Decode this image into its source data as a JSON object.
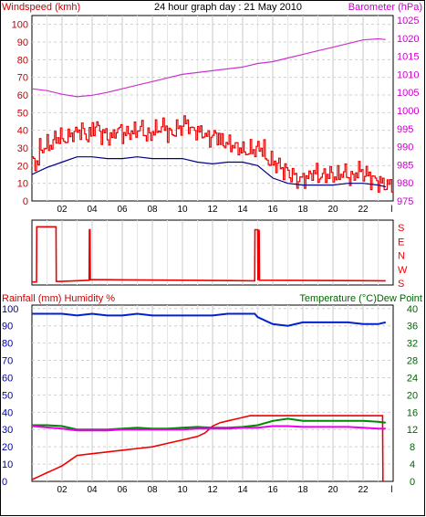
{
  "title": "24 hour graph day : 21 May 2010",
  "colors": {
    "background": "#ffffff",
    "grid": "#c8c8c8",
    "axis_left_top": "#cc0000",
    "axis_right_top": "#cc00cc",
    "windspeed": "#ee0000",
    "windspeed_avg": "#000088",
    "barometer": "#cc33cc",
    "direction": "#ee0000",
    "rainfall": "#ee0000",
    "humidity": "#0022cc",
    "temperature": "#008800",
    "dewpoint": "#ee00ee",
    "axis_temperature": "#006600",
    "axis_humidity": "#0000aa"
  },
  "chart_data": [
    {
      "id": "wind-barometer",
      "type": "line",
      "left_axis_label": "Windspeed (kmh)",
      "right_axis_label": "Barometer (hPa)",
      "x_ticks": [
        "02",
        "04",
        "06",
        "08",
        "10",
        "12",
        "14",
        "16",
        "18",
        "20",
        "22",
        "l"
      ],
      "x_range": [
        0,
        24
      ],
      "left_ticks": [
        "0",
        "10",
        "20",
        "30",
        "40",
        "50",
        "60",
        "70",
        "80",
        "90",
        "100"
      ],
      "left_range": [
        0,
        105
      ],
      "right_ticks": [
        "975",
        "980",
        "985",
        "990",
        "995",
        "1000",
        "1005",
        "1010",
        "1015",
        "1020",
        "1025"
      ],
      "right_range": [
        975,
        1026.25
      ],
      "grid": true,
      "series": [
        {
          "key": "windspeed_gust",
          "axis": "left",
          "x": [
            0,
            0.5,
            1,
            1.5,
            2,
            2.5,
            3,
            3.5,
            4,
            4.5,
            5,
            5.5,
            6,
            6.5,
            7,
            7.5,
            8,
            8.5,
            9,
            9.5,
            10,
            10.5,
            11,
            11.5,
            12,
            12.5,
            13,
            13.5,
            14,
            14.5,
            15,
            15.5,
            16,
            16.5,
            17,
            17.5,
            18,
            18.5,
            19,
            19.5,
            20,
            20.5,
            21,
            21.5,
            22,
            22.5,
            23,
            23.5
          ],
          "values": [
            22,
            30,
            32,
            36,
            35,
            38,
            40,
            37,
            42,
            38,
            36,
            40,
            38,
            39,
            41,
            37,
            40,
            42,
            38,
            41,
            44,
            40,
            39,
            36,
            37,
            33,
            32,
            30,
            28,
            29,
            30,
            23,
            21,
            18,
            15,
            12,
            13,
            16,
            14,
            15,
            14,
            16,
            13,
            17,
            15,
            12,
            10,
            9
          ]
        },
        {
          "key": "windspeed_avg",
          "axis": "left",
          "x": [
            0,
            1,
            2,
            3,
            4,
            5,
            6,
            7,
            8,
            9,
            10,
            11,
            12,
            13,
            14,
            15,
            16,
            17,
            18,
            19,
            20,
            21,
            22,
            23,
            23.5
          ],
          "values": [
            15,
            19,
            22,
            25,
            25,
            24,
            24,
            25,
            24,
            24,
            24,
            22,
            21,
            22,
            22,
            20,
            13,
            10,
            9,
            9,
            9,
            10,
            10,
            9,
            8
          ]
        },
        {
          "key": "barometer",
          "axis": "right",
          "x": [
            0,
            1,
            2,
            3,
            4,
            5,
            6,
            7,
            8,
            9,
            10,
            11,
            12,
            13,
            14,
            15,
            16,
            17,
            18,
            19,
            20,
            21,
            22,
            23,
            23.5
          ],
          "values": [
            1006,
            1005.5,
            1004.5,
            1003.8,
            1004.2,
            1005,
            1006,
            1007,
            1008,
            1009,
            1010,
            1010.5,
            1011,
            1011.5,
            1012,
            1013,
            1013.5,
            1014.5,
            1015.5,
            1016.5,
            1017.5,
            1018.5,
            1019.5,
            1019.8,
            1019.6
          ]
        }
      ]
    },
    {
      "id": "wind-direction",
      "type": "line",
      "right_ticks": [
        "S",
        "E",
        "N",
        "W",
        "S"
      ],
      "series": [
        {
          "key": "direction",
          "x": [
            0,
            0.3,
            0.32,
            1.6,
            1.62,
            1.9,
            1.92,
            3.8,
            3.82,
            3.86,
            3.88,
            14.8,
            14.82,
            15,
            15.02,
            15.1,
            15.12,
            23.5
          ],
          "values": [
            0.02,
            0.02,
            0.95,
            0.95,
            0.03,
            0.03,
            0.03,
            0.05,
            0.9,
            0.9,
            0.06,
            0.04,
            0.9,
            0.9,
            0.05,
            0.9,
            0.05,
            0.04
          ]
        }
      ]
    },
    {
      "id": "rain-humidity-temperature",
      "type": "line",
      "left_header": "Rainfall (mm)  Humidity %",
      "right_header": "Temperature (°C)Dew Point",
      "left_ticks": [
        "0",
        "10",
        "20",
        "30",
        "40",
        "50",
        "60",
        "70",
        "80",
        "90",
        "100"
      ],
      "left_range": [
        0,
        102
      ],
      "right_ticks": [
        "0",
        "4",
        "8",
        "12",
        "16",
        "20",
        "24",
        "28",
        "32",
        "36",
        "40"
      ],
      "right_range": [
        0,
        40.8
      ],
      "x_ticks": [
        "02",
        "04",
        "06",
        "08",
        "10",
        "12",
        "14",
        "16",
        "18",
        "20",
        "22",
        "l"
      ],
      "series": [
        {
          "key": "humidity",
          "axis": "left",
          "x": [
            0,
            1,
            2,
            3,
            4,
            5,
            6,
            7,
            8,
            9,
            10,
            11,
            12,
            13,
            14,
            14.8,
            15,
            16,
            17,
            18,
            19,
            20,
            21,
            22,
            23,
            23.5
          ],
          "values": [
            97,
            97,
            97,
            96,
            97,
            96,
            96,
            97,
            96,
            96,
            96,
            96,
            96,
            97,
            97,
            97,
            95,
            91,
            90,
            92,
            92,
            92,
            92,
            91,
            91,
            92
          ]
        },
        {
          "key": "rainfall",
          "axis": "left",
          "x": [
            0,
            0.5,
            1,
            1.5,
            2,
            2.5,
            3,
            4,
            5,
            6,
            7,
            8,
            9,
            10,
            11,
            11.5,
            12,
            12.5,
            13,
            13.5,
            14,
            14.5,
            15,
            16,
            17,
            18,
            19,
            20,
            21,
            22,
            23,
            23.3,
            23.32
          ],
          "values": [
            1,
            3,
            5,
            7,
            9,
            12,
            15,
            16,
            17,
            18,
            19,
            20,
            22,
            24,
            26,
            28,
            32,
            34,
            35,
            36,
            37,
            38,
            38,
            38,
            38,
            38,
            38,
            38,
            38,
            38,
            38,
            38,
            0
          ]
        },
        {
          "key": "temperature",
          "axis": "right",
          "x": [
            0,
            1,
            2,
            3,
            4,
            5,
            6,
            7,
            8,
            9,
            10,
            11,
            12,
            13,
            14,
            15,
            16,
            17,
            18,
            19,
            20,
            21,
            22,
            23,
            23.5
          ],
          "values": [
            13,
            13,
            12.8,
            12,
            12,
            12,
            12.2,
            12.4,
            12.2,
            12.2,
            12.4,
            12.6,
            12.4,
            12.4,
            12.6,
            13,
            14,
            14.5,
            14,
            14,
            14,
            14,
            14,
            13.8,
            13.6
          ]
        },
        {
          "key": "dewpoint",
          "axis": "right",
          "x": [
            0,
            1,
            2,
            3,
            4,
            5,
            6,
            7,
            8,
            9,
            10,
            11,
            12,
            13,
            14,
            15,
            16,
            17,
            18,
            19,
            20,
            21,
            22,
            23,
            23.5
          ],
          "values": [
            12.8,
            12.5,
            12.2,
            11.8,
            11.8,
            11.8,
            12,
            12,
            12,
            12,
            12,
            12.2,
            12.2,
            12.2,
            12.4,
            12.4,
            12.8,
            12.8,
            12.6,
            12.6,
            12.6,
            12.6,
            12.4,
            12.2,
            12.2
          ]
        }
      ]
    }
  ]
}
